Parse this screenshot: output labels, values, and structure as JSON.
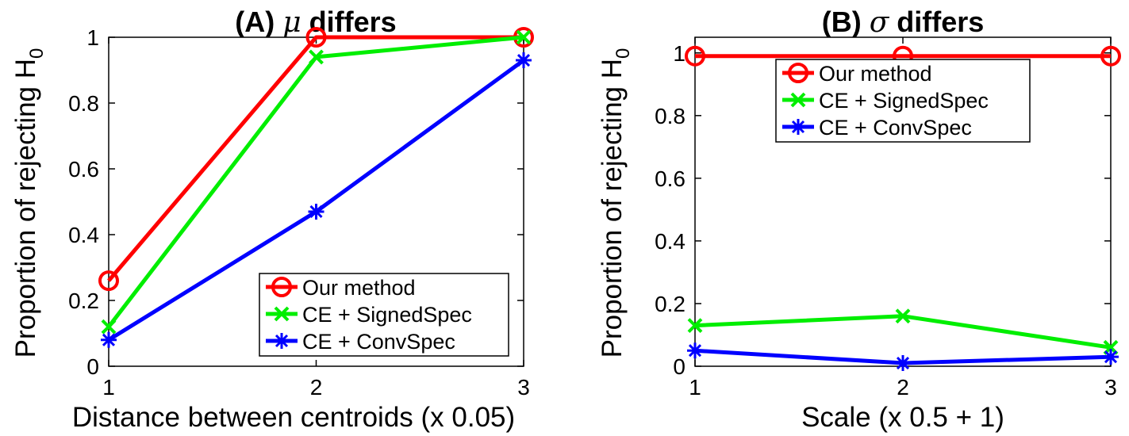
{
  "chart_data": [
    {
      "type": "line",
      "title_prefix": "(A) ",
      "title_symbol": "μ",
      "title_suffix": " differs",
      "xlabel": "Distance between centroids (x 0.05)",
      "ylabel": "Proportion of rejecting H",
      "ylabel_sub": "0",
      "xlim": [
        1,
        3
      ],
      "ylim": [
        0,
        1
      ],
      "x": [
        1,
        2,
        3
      ],
      "xticks": [
        "1",
        "2",
        "3"
      ],
      "yticks": [
        "0",
        "0.2",
        "0.4",
        "0.6",
        "0.8",
        "1"
      ],
      "legend_position": "bottom-right",
      "series": [
        {
          "name": "Our method",
          "color": "#ff0000",
          "marker": "circle",
          "values": [
            0.26,
            1.0,
            1.0
          ]
        },
        {
          "name": "CE + SignedSpec",
          "color": "#00ee00",
          "marker": "x",
          "values": [
            0.12,
            0.94,
            1.0
          ]
        },
        {
          "name": "CE + ConvSpec",
          "color": "#0000ff",
          "marker": "asterisk",
          "values": [
            0.08,
            0.47,
            0.93
          ]
        }
      ]
    },
    {
      "type": "line",
      "title_prefix": "(B) ",
      "title_symbol": "σ",
      "title_suffix": " differs",
      "xlabel": "Scale (x 0.5 + 1)",
      "ylabel": "Proportion of rejecting H",
      "ylabel_sub": "0",
      "xlim": [
        1,
        3
      ],
      "ylim": [
        0,
        1.05
      ],
      "x": [
        1,
        2,
        3
      ],
      "xticks": [
        "1",
        "2",
        "3"
      ],
      "yticks": [
        "0",
        "0.2",
        "0.4",
        "0.6",
        "0.8",
        "1"
      ],
      "legend_position": "top",
      "series": [
        {
          "name": "Our method",
          "color": "#ff0000",
          "marker": "circle",
          "values": [
            0.99,
            0.99,
            0.99
          ]
        },
        {
          "name": "CE + SignedSpec",
          "color": "#00ee00",
          "marker": "x",
          "values": [
            0.13,
            0.16,
            0.06
          ]
        },
        {
          "name": "CE + ConvSpec",
          "color": "#0000ff",
          "marker": "asterisk",
          "values": [
            0.05,
            0.01,
            0.03
          ]
        }
      ]
    }
  ]
}
